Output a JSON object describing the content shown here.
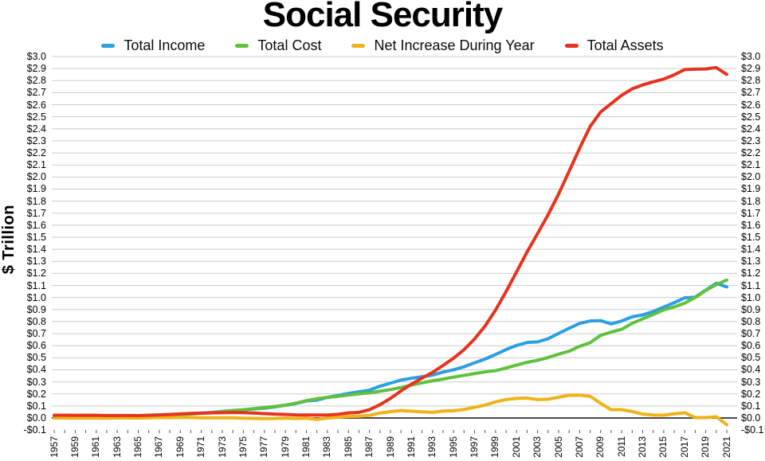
{
  "title": "Social Security",
  "y_axis": {
    "label": "$ Trillion",
    "min": -0.1,
    "max": 3.0,
    "step": 0.1,
    "tick_format": "dollar-trillions"
  },
  "x_axis": {
    "start_year": 1957,
    "end_year": 2021,
    "tick_every_years": 1,
    "label_every_years": 2
  },
  "colors": {
    "background": "#ffffff",
    "gridline": "#cbcbcb",
    "zero_line": "#4a4a4a",
    "tick": "#555555",
    "text": "#000000",
    "total_income": "#2b9fe2",
    "total_cost": "#5fc13c",
    "net_increase": "#efb318",
    "total_assets": "#e6331f"
  },
  "chart_data": {
    "type": "line",
    "title": "Social Security",
    "xlabel": "",
    "ylabel": "$ Trillion",
    "ylim": [
      -0.1,
      3.0
    ],
    "xlim": [
      1957,
      2021
    ],
    "grid": "horizontal",
    "legend_position": "top",
    "x": [
      1957,
      1958,
      1959,
      1960,
      1961,
      1962,
      1963,
      1964,
      1965,
      1966,
      1967,
      1968,
      1969,
      1970,
      1971,
      1972,
      1973,
      1974,
      1975,
      1976,
      1977,
      1978,
      1979,
      1980,
      1981,
      1982,
      1983,
      1984,
      1985,
      1986,
      1987,
      1988,
      1989,
      1990,
      1991,
      1992,
      1993,
      1994,
      1995,
      1996,
      1997,
      1998,
      1999,
      2000,
      2001,
      2002,
      2003,
      2004,
      2005,
      2006,
      2007,
      2008,
      2009,
      2010,
      2011,
      2012,
      2013,
      2014,
      2015,
      2016,
      2017,
      2018,
      2019,
      2020,
      2021
    ],
    "series": [
      {
        "name": "Total Income",
        "color": "#2b9fe2",
        "values": [
          0.008,
          0.009,
          0.009,
          0.012,
          0.013,
          0.014,
          0.016,
          0.017,
          0.018,
          0.023,
          0.026,
          0.029,
          0.033,
          0.037,
          0.041,
          0.046,
          0.055,
          0.062,
          0.068,
          0.075,
          0.082,
          0.092,
          0.106,
          0.12,
          0.142,
          0.148,
          0.171,
          0.187,
          0.204,
          0.217,
          0.231,
          0.264,
          0.289,
          0.315,
          0.33,
          0.343,
          0.356,
          0.381,
          0.4,
          0.425,
          0.458,
          0.489,
          0.527,
          0.568,
          0.602,
          0.627,
          0.632,
          0.658,
          0.702,
          0.745,
          0.785,
          0.805,
          0.808,
          0.781,
          0.805,
          0.84,
          0.855,
          0.884,
          0.92,
          0.957,
          0.997,
          1.003,
          1.062,
          1.118,
          1.088
        ]
      },
      {
        "name": "Total Cost",
        "color": "#5fc13c",
        "values": [
          0.007,
          0.009,
          0.011,
          0.012,
          0.013,
          0.015,
          0.016,
          0.017,
          0.019,
          0.021,
          0.022,
          0.026,
          0.028,
          0.033,
          0.039,
          0.043,
          0.053,
          0.061,
          0.069,
          0.078,
          0.087,
          0.096,
          0.107,
          0.123,
          0.144,
          0.16,
          0.171,
          0.18,
          0.191,
          0.201,
          0.209,
          0.222,
          0.236,
          0.253,
          0.274,
          0.292,
          0.309,
          0.323,
          0.34,
          0.354,
          0.369,
          0.382,
          0.393,
          0.415,
          0.439,
          0.462,
          0.479,
          0.502,
          0.53,
          0.555,
          0.595,
          0.625,
          0.686,
          0.713,
          0.736,
          0.786,
          0.823,
          0.859,
          0.897,
          0.922,
          0.953,
          1.0,
          1.059,
          1.107,
          1.145
        ]
      },
      {
        "name": "Net Increase During Year",
        "color": "#efb318",
        "values": [
          0.001,
          0.0,
          -0.002,
          0.0,
          -0.001,
          -0.002,
          0.0,
          0.0,
          -0.001,
          0.002,
          0.004,
          0.003,
          0.005,
          0.004,
          0.002,
          0.002,
          0.002,
          0.002,
          -0.002,
          -0.003,
          -0.005,
          -0.004,
          -0.001,
          -0.004,
          -0.002,
          -0.012,
          0.0,
          0.006,
          0.013,
          0.015,
          0.022,
          0.041,
          0.053,
          0.062,
          0.056,
          0.051,
          0.047,
          0.058,
          0.06,
          0.071,
          0.089,
          0.107,
          0.134,
          0.153,
          0.163,
          0.165,
          0.153,
          0.156,
          0.172,
          0.189,
          0.19,
          0.18,
          0.122,
          0.069,
          0.069,
          0.054,
          0.032,
          0.025,
          0.023,
          0.035,
          0.044,
          0.003,
          0.003,
          0.011,
          -0.056
        ]
      },
      {
        "name": "Total Assets",
        "color": "#e6331f",
        "values": [
          0.023,
          0.023,
          0.022,
          0.023,
          0.022,
          0.021,
          0.021,
          0.021,
          0.02,
          0.022,
          0.026,
          0.029,
          0.034,
          0.038,
          0.04,
          0.043,
          0.044,
          0.046,
          0.044,
          0.041,
          0.036,
          0.032,
          0.03,
          0.026,
          0.025,
          0.025,
          0.025,
          0.031,
          0.042,
          0.047,
          0.069,
          0.11,
          0.163,
          0.225,
          0.281,
          0.331,
          0.378,
          0.436,
          0.496,
          0.567,
          0.656,
          0.763,
          0.896,
          1.049,
          1.213,
          1.378,
          1.531,
          1.687,
          1.859,
          2.048,
          2.239,
          2.419,
          2.54,
          2.609,
          2.678,
          2.732,
          2.764,
          2.79,
          2.813,
          2.848,
          2.892,
          2.895,
          2.897,
          2.908,
          2.852
        ]
      }
    ]
  }
}
